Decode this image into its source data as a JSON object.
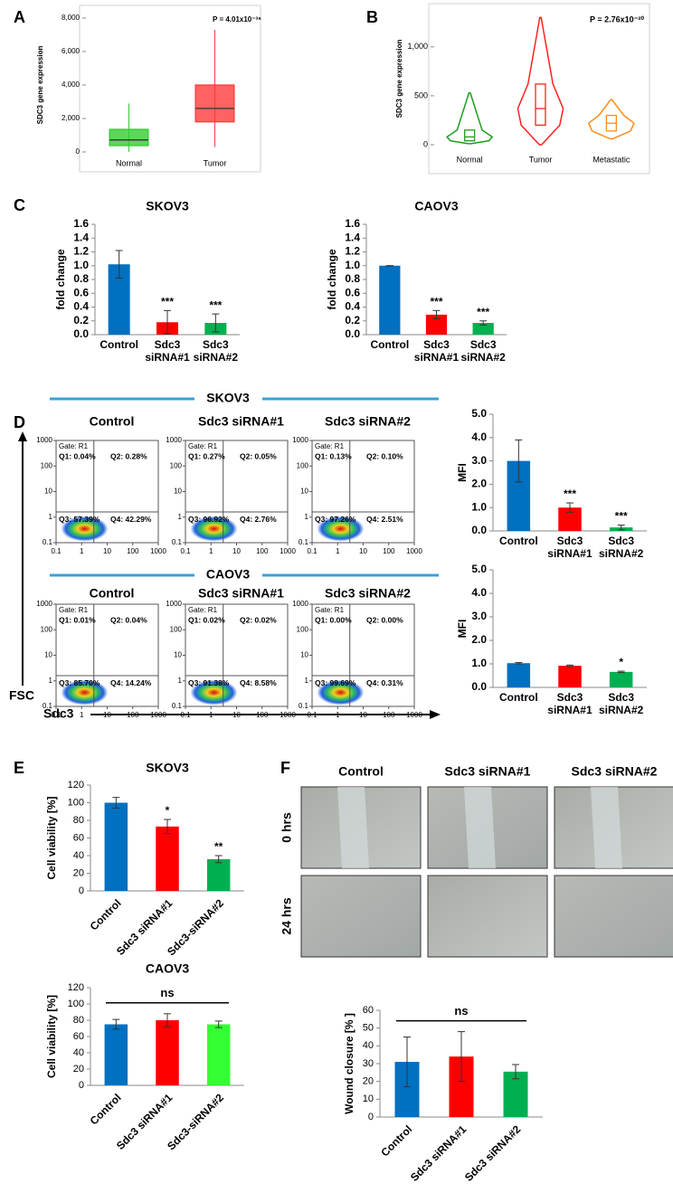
{
  "panel_labels": [
    "A",
    "B",
    "C",
    "D",
    "E",
    "F"
  ],
  "chart_data": [
    {
      "type": "box",
      "ylabel": "SDC3 gene expression",
      "annotation": "P = 4.01x10⁻³⁹",
      "categories": [
        "Normal",
        "Tumor"
      ],
      "colors": [
        "#33cc33",
        "#ff3b3b"
      ],
      "min": [
        0,
        300
      ],
      "q1": [
        380,
        1800
      ],
      "median": [
        720,
        2600
      ],
      "q3": [
        1350,
        4000
      ],
      "max": [
        2900,
        7300
      ],
      "ylim": [
        0,
        8000
      ],
      "yticks": [
        0,
        {
          "value": 2000,
          "label": "2,000"
        },
        {
          "value": 4000,
          "label": "4,000"
        },
        {
          "value": 6000,
          "label": "6,000"
        },
        {
          "value": 8000,
          "label": "8,000"
        }
      ]
    },
    {
      "type": "violin",
      "ylabel": "SDC3 gene expression",
      "annotation": "P = 2.76x10⁻²⁰",
      "categories": [
        "Normal",
        "Tumor",
        "Metastatic"
      ],
      "colors": [
        "#1e9e1e",
        "#ff2020",
        "#ff8c1a"
      ],
      "min": [
        10,
        0,
        60
      ],
      "q1": [
        40,
        200,
        140
      ],
      "median": [
        80,
        370,
        220
      ],
      "q3": [
        150,
        620,
        300
      ],
      "max": [
        530,
        1300,
        460
      ],
      "ylim": [
        0,
        1350
      ],
      "yticks": [
        0,
        500,
        {
          "value": 1000,
          "label": "1,000"
        }
      ]
    },
    {
      "type": "bar",
      "title": "SKOV3",
      "ylabel": "fold change",
      "categories": [
        "Control",
        "Sdc3 siRNA#1",
        "Sdc3 siRNA#2"
      ],
      "values": [
        1.02,
        0.18,
        0.17
      ],
      "errors": [
        0.2,
        0.17,
        0.13
      ],
      "colors": [
        "#0070c0",
        "#ff0000",
        "#00b050"
      ],
      "annotations": [
        null,
        "***",
        "***"
      ],
      "ylim": [
        0,
        1.6
      ],
      "yticks": [
        {
          "value": 0,
          "label": "0.0"
        },
        0.2,
        0.4,
        0.6,
        0.8,
        {
          "value": 1,
          "label": "1.0"
        },
        1.2,
        1.4,
        1.6
      ]
    },
    {
      "type": "bar",
      "title": "CAOV3",
      "ylabel": "fold change",
      "categories": [
        "Control",
        "Sdc3 siRNA#1",
        "Sdc3 siRNA#2"
      ],
      "values": [
        1.0,
        0.29,
        0.17
      ],
      "errors": [
        0,
        0.06,
        0.03
      ],
      "colors": [
        "#0070c0",
        "#ff0000",
        "#00b050"
      ],
      "annotations": [
        null,
        "***",
        "***"
      ],
      "ylim": [
        0,
        1.6
      ],
      "yticks": [
        {
          "value": 0,
          "label": "0.0"
        },
        0.2,
        0.4,
        0.6,
        0.8,
        {
          "value": 1,
          "label": "1.0"
        },
        1.2,
        1.4,
        1.6
      ]
    },
    {
      "type": "bar",
      "ylabel": "MFI",
      "categories": [
        "Control",
        "Sdc3 siRNA#1",
        "Sdc3 siRNA#2"
      ],
      "values": [
        3.0,
        1.0,
        0.15
      ],
      "errors": [
        0.9,
        0.2,
        0.1
      ],
      "colors": [
        "#0070c0",
        "#ff0000",
        "#00b050"
      ],
      "annotations": [
        null,
        "***",
        "***"
      ],
      "ylim": [
        0,
        5
      ],
      "yticks": [
        {
          "value": 0,
          "label": "0.0"
        },
        {
          "value": 1,
          "label": "1.0"
        },
        {
          "value": 2,
          "label": "2.0"
        },
        {
          "value": 3,
          "label": "3.0"
        },
        {
          "value": 4,
          "label": "4.0"
        },
        {
          "value": 5,
          "label": "5.0"
        }
      ]
    },
    {
      "type": "bar",
      "ylabel": "MFI",
      "categories": [
        "Control",
        "Sdc3 siRNA#1",
        "Sdc3 siRNA#2"
      ],
      "values": [
        1.03,
        0.92,
        0.66
      ],
      "errors": [
        0.03,
        0.03,
        0.03
      ],
      "colors": [
        "#0070c0",
        "#ff0000",
        "#00b050"
      ],
      "annotations": [
        null,
        null,
        "*"
      ],
      "ylim": [
        0,
        5
      ],
      "yticks": [
        {
          "value": 0,
          "label": "0.0"
        },
        {
          "value": 1,
          "label": "1.0"
        },
        {
          "value": 2,
          "label": "2.0"
        },
        {
          "value": 3,
          "label": "3.0"
        },
        {
          "value": 4,
          "label": "4.0"
        },
        {
          "value": 5,
          "label": "5.0"
        }
      ]
    },
    {
      "type": "bar",
      "title": "SKOV3",
      "ylabel": "Cell viability [%]",
      "categories": [
        "Control",
        "Sdc3 siRNA#1",
        "Sdc3-siRNA#2"
      ],
      "values": [
        100,
        73,
        36
      ],
      "errors": [
        6,
        8,
        4
      ],
      "colors": [
        "#0070c0",
        "#ff0000",
        "#00b050"
      ],
      "annotations": [
        null,
        "*",
        "**"
      ],
      "ylim": [
        0,
        120
      ],
      "yticks": [
        0,
        20,
        40,
        60,
        80,
        100,
        120
      ]
    },
    {
      "type": "bar",
      "title": "CAOV3",
      "ylabel": "Cell viability [%]",
      "categories": [
        "Control",
        "Sdc3 siRNA#1",
        "Sdc3-siRNA#2"
      ],
      "values": [
        75,
        80,
        75
      ],
      "errors": [
        6,
        8,
        4
      ],
      "colors": [
        "#0070c0",
        "#ff0000",
        "#33ff33"
      ],
      "bracket_label": "ns",
      "ylim": [
        0,
        120
      ],
      "yticks": [
        0,
        20,
        40,
        60,
        80,
        100,
        120
      ]
    },
    {
      "type": "bar",
      "ylabel": "Wound closure [% ]",
      "categories": [
        "Control",
        "Sdc3 siRNA#1",
        "Sdc3 siRNA#2"
      ],
      "values": [
        31,
        34,
        25.5
      ],
      "errors": [
        14,
        14,
        4
      ],
      "colors": [
        "#0070c0",
        "#ff0000",
        "#00b050"
      ],
      "bracket_label": "ns",
      "ylim": [
        0,
        60
      ],
      "yticks": [
        0,
        10,
        20,
        30,
        40,
        50,
        60
      ]
    }
  ],
  "flow": {
    "x_label": "Sdc3",
    "y_label": "FSC",
    "gate": "Gate: R1",
    "ticks": [
      0.1,
      1,
      10,
      100,
      1000
    ],
    "groups": [
      {
        "title": "SKOV3",
        "plots": [
          {
            "title": "Control",
            "quadrants": [
              "Q1: 0.04%",
              "Q2: 0.28%",
              "Q3: 57.39%",
              "Q4: 42.29%"
            ]
          },
          {
            "title": "Sdc3 siRNA#1",
            "quadrants": [
              "Q1: 0.27%",
              "Q2: 0.05%",
              "Q3: 96.92%",
              "Q4: 2.76%"
            ]
          },
          {
            "title": "Sdc3 siRNA#2",
            "quadrants": [
              "Q1: 0.13%",
              "Q2: 0.10%",
              "Q3: 97.26%",
              "Q4: 2.51%"
            ]
          }
        ]
      },
      {
        "title": "CAOV3",
        "plots": [
          {
            "title": "Control",
            "quadrants": [
              "Q1: 0.01%",
              "Q2: 0.04%",
              "Q3: 85.70%",
              "Q4: 14.24%"
            ]
          },
          {
            "title": "Sdc3 siRNA#1",
            "quadrants": [
              "Q1: 0.02%",
              "Q2: 0.02%",
              "Q3: 91.38%",
              "Q4: 8.58%"
            ]
          },
          {
            "title": "Sdc3 siRNA#2",
            "quadrants": [
              "Q1: 0.00%",
              "Q2: 0.00%",
              "Q3: 99.69%",
              "Q4: 0.31%"
            ]
          }
        ]
      }
    ]
  },
  "wound": {
    "columns": [
      "Control",
      "Sdc3 siRNA#1",
      "Sdc3 siRNA#2"
    ],
    "rows": [
      "0 hrs",
      "24 hrs"
    ]
  }
}
